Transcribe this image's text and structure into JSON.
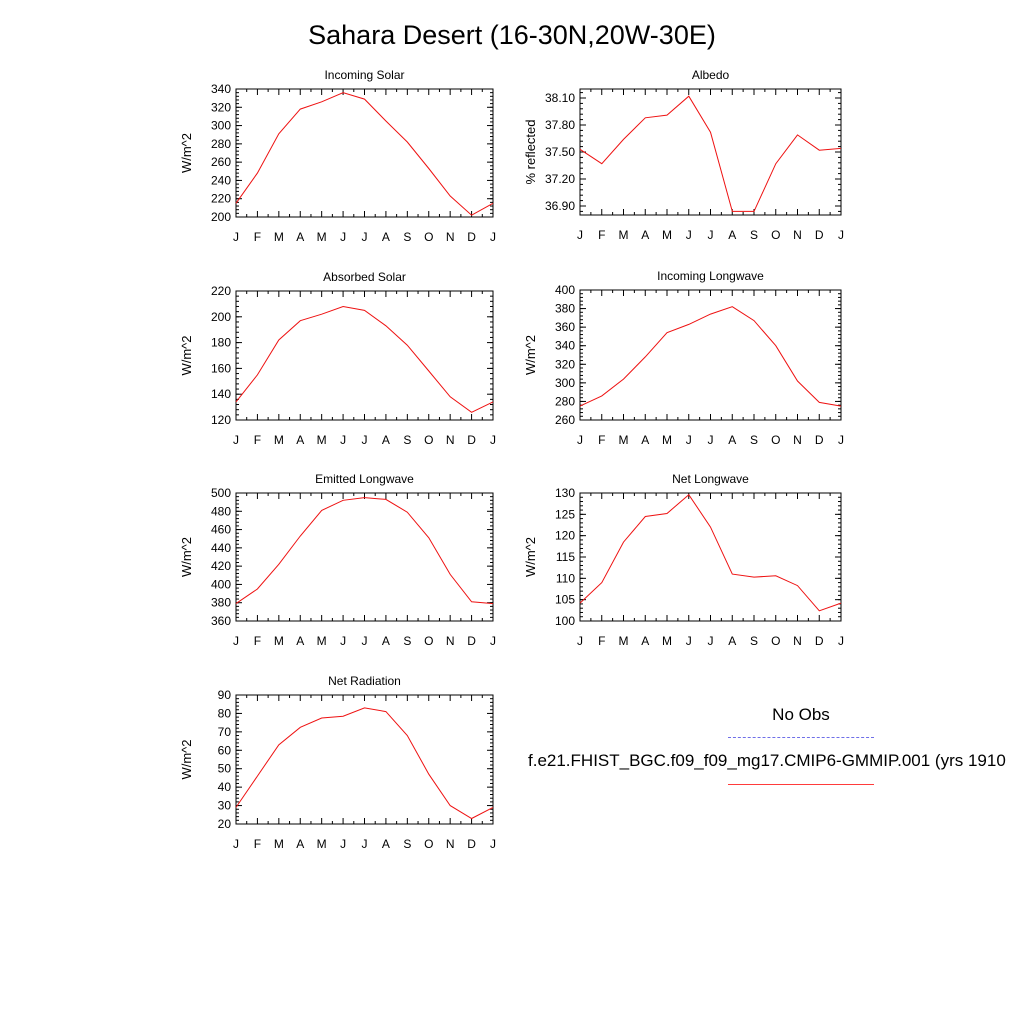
{
  "title": "Sahara Desert (16-30N,20W-30E)",
  "colors": {
    "model_line": "#ee1111",
    "obs_line": "#6f6fe8"
  },
  "legend": {
    "obs_label": "No Obs",
    "case_label": "f.e21.FHIST_BGC.f09_f09_mg17.CMIP6-GMMIP.001 (yrs 1910"
  },
  "chart_data": [
    {
      "type": "line",
      "title": "Incoming Solar",
      "ylabel": "W/m^2",
      "categories": [
        "J",
        "F",
        "M",
        "A",
        "M",
        "J",
        "J",
        "A",
        "S",
        "O",
        "N",
        "D",
        "J"
      ],
      "ylim": [
        200,
        340
      ],
      "yticks": [
        200,
        220,
        240,
        260,
        280,
        300,
        320,
        340
      ],
      "yticklabels": [
        "200",
        "220",
        "240",
        "260",
        "280",
        "300",
        "320",
        "340"
      ],
      "values": [
        215,
        248,
        291,
        318,
        326,
        336,
        329,
        305,
        282,
        253,
        223,
        202,
        215
      ]
    },
    {
      "type": "line",
      "title": "Albedo",
      "ylabel": "% reflected",
      "categories": [
        "J",
        "F",
        "M",
        "A",
        "M",
        "J",
        "J",
        "A",
        "S",
        "O",
        "N",
        "D",
        "J"
      ],
      "ylim": [
        36.8,
        38.2
      ],
      "yticks": [
        36.9,
        37.2,
        37.5,
        37.8,
        38.1
      ],
      "yticklabels": [
        "36.90",
        "37.20",
        "37.50",
        "37.80",
        "38.10"
      ],
      "values": [
        37.53,
        37.37,
        37.64,
        37.88,
        37.91,
        38.12,
        37.72,
        36.84,
        36.84,
        37.37,
        37.69,
        37.52,
        37.54
      ]
    },
    {
      "type": "line",
      "title": "Absorbed Solar",
      "ylabel": "W/m^2",
      "categories": [
        "J",
        "F",
        "M",
        "A",
        "M",
        "J",
        "J",
        "A",
        "S",
        "O",
        "N",
        "D",
        "J"
      ],
      "ylim": [
        120,
        220
      ],
      "yticks": [
        120,
        140,
        160,
        180,
        200,
        220
      ],
      "yticklabels": [
        "120",
        "140",
        "160",
        "180",
        "200",
        "220"
      ],
      "values": [
        134,
        155,
        182,
        197,
        202,
        208,
        205,
        193,
        178,
        158,
        138,
        126,
        134
      ]
    },
    {
      "type": "line",
      "title": "Incoming Longwave",
      "ylabel": "W/m^2",
      "categories": [
        "J",
        "F",
        "M",
        "A",
        "M",
        "J",
        "J",
        "A",
        "S",
        "O",
        "N",
        "D",
        "J"
      ],
      "ylim": [
        260,
        400
      ],
      "yticks": [
        260,
        280,
        300,
        320,
        340,
        360,
        380,
        400
      ],
      "yticklabels": [
        "260",
        "280",
        "300",
        "320",
        "340",
        "360",
        "380",
        "400"
      ],
      "values": [
        275,
        286,
        304,
        328,
        354,
        363,
        374,
        382,
        367,
        340,
        302,
        279,
        275
      ]
    },
    {
      "type": "line",
      "title": "Emitted Longwave",
      "ylabel": "W/m^2",
      "categories": [
        "J",
        "F",
        "M",
        "A",
        "M",
        "J",
        "J",
        "A",
        "S",
        "O",
        "N",
        "D",
        "J"
      ],
      "ylim": [
        360,
        500
      ],
      "yticks": [
        360,
        380,
        400,
        420,
        440,
        460,
        480,
        500
      ],
      "yticklabels": [
        "360",
        "380",
        "400",
        "420",
        "440",
        "460",
        "480",
        "500"
      ],
      "values": [
        379,
        395,
        422,
        453,
        481,
        492,
        495,
        493,
        479,
        451,
        411,
        381,
        379
      ]
    },
    {
      "type": "line",
      "title": "Net Longwave",
      "ylabel": "W/m^2",
      "categories": [
        "J",
        "F",
        "M",
        "A",
        "M",
        "J",
        "J",
        "A",
        "S",
        "O",
        "N",
        "D",
        "J"
      ],
      "ylim": [
        100,
        130
      ],
      "yticks": [
        100,
        105,
        110,
        115,
        120,
        125,
        130
      ],
      "yticklabels": [
        "100",
        "105",
        "110",
        "115",
        "120",
        "125",
        "130"
      ],
      "values": [
        104.2,
        109,
        118.5,
        124.5,
        125.2,
        129.6,
        122,
        111,
        110.3,
        110.6,
        108.3,
        102.4,
        104.2
      ]
    },
    {
      "type": "line",
      "title": "Net Radiation",
      "ylabel": "W/m^2",
      "categories": [
        "J",
        "F",
        "M",
        "A",
        "M",
        "J",
        "J",
        "A",
        "S",
        "O",
        "N",
        "D",
        "J"
      ],
      "ylim": [
        20,
        90
      ],
      "yticks": [
        20,
        30,
        40,
        50,
        60,
        70,
        80,
        90
      ],
      "yticklabels": [
        "20",
        "30",
        "40",
        "50",
        "60",
        "70",
        "80",
        "90"
      ],
      "values": [
        29,
        46,
        63,
        72.5,
        77.5,
        78.5,
        83,
        81,
        68,
        47,
        30,
        23,
        29
      ]
    }
  ]
}
